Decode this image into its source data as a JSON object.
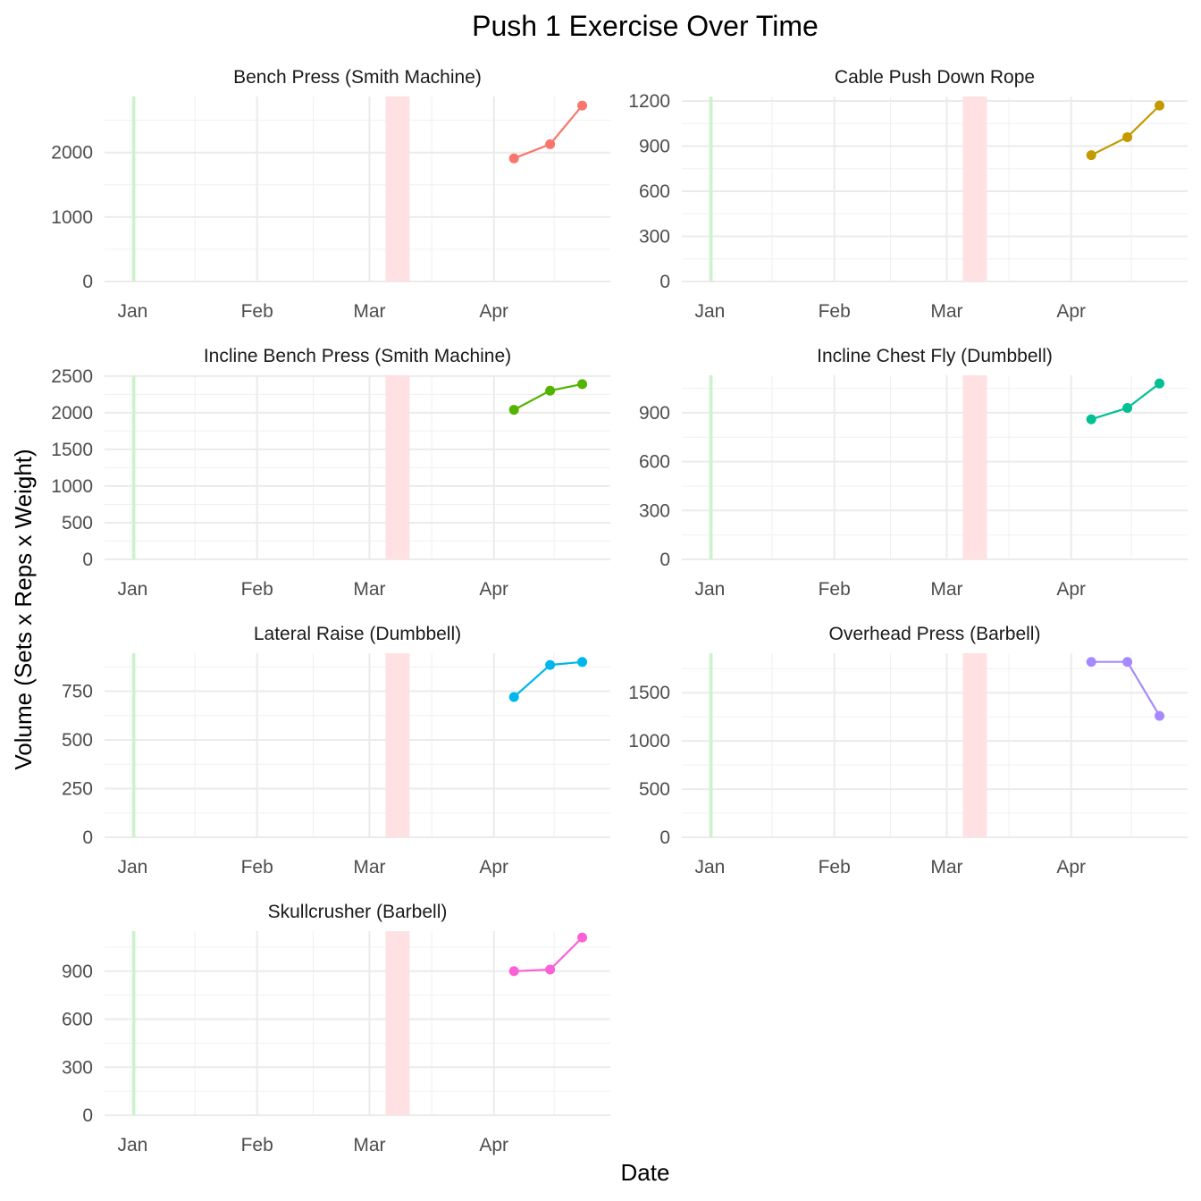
{
  "chart_data": {
    "type": "line",
    "title": "Push 1  Exercise Over Time",
    "xlabel": "Date",
    "ylabel": "Volume (Sets x Reps x Weight)",
    "grid": true,
    "legend": "none",
    "x_ticks": [
      "Jan",
      "Feb",
      "Mar",
      "Apr"
    ],
    "x_tick_dates": [
      "2025-01-01",
      "2025-02-01",
      "2025-03-01",
      "2025-04-01"
    ],
    "xlim": [
      "2024-12-25",
      "2025-04-30"
    ],
    "highlight_bands": [
      {
        "start": "2025-01-01",
        "end": "2025-01-01",
        "color": "#c8f5c8"
      },
      {
        "start": "2025-03-05",
        "end": "2025-03-11",
        "color": "#ffe1e3"
      }
    ],
    "series": [
      {
        "name": "Bench Press (Smith Machine)",
        "color": "#F8766D",
        "x": [
          "2025-04-06",
          "2025-04-15",
          "2025-04-23"
        ],
        "y": [
          1910,
          2130,
          2730
        ],
        "ylim": [
          0,
          2870
        ],
        "y_ticks": [
          0,
          1000,
          2000
        ]
      },
      {
        "name": "Cable Push Down Rope",
        "color": "#C49A00",
        "x": [
          "2025-04-06",
          "2025-04-15",
          "2025-04-23"
        ],
        "y": [
          840,
          960,
          1170
        ],
        "ylim": [
          0,
          1230
        ],
        "y_ticks": [
          0,
          300,
          600,
          900,
          1200
        ]
      },
      {
        "name": "Incline Bench Press (Smith Machine)",
        "color": "#53B400",
        "x": [
          "2025-04-06",
          "2025-04-15",
          "2025-04-23"
        ],
        "y": [
          2040,
          2300,
          2390
        ],
        "ylim": [
          0,
          2510
        ],
        "y_ticks": [
          0,
          500,
          1000,
          1500,
          2000,
          2500
        ]
      },
      {
        "name": "Incline Chest Fly (Dumbbell)",
        "color": "#00C094",
        "x": [
          "2025-04-06",
          "2025-04-15",
          "2025-04-23"
        ],
        "y": [
          860,
          930,
          1080
        ],
        "ylim": [
          0,
          1130
        ],
        "y_ticks": [
          0,
          300,
          600,
          900
        ]
      },
      {
        "name": "Lateral Raise (Dumbbell)",
        "color": "#00B6EB",
        "x": [
          "2025-04-06",
          "2025-04-15",
          "2025-04-23"
        ],
        "y": [
          720,
          885,
          900
        ],
        "ylim": [
          0,
          945
        ],
        "y_ticks": [
          0,
          250,
          500,
          750
        ]
      },
      {
        "name": "Overhead Press (Barbell)",
        "color": "#A58AFF",
        "x": [
          "2025-04-06",
          "2025-04-15",
          "2025-04-23"
        ],
        "y": [
          1820,
          1820,
          1260
        ],
        "ylim": [
          0,
          1910
        ],
        "y_ticks": [
          0,
          500,
          1000,
          1500
        ]
      },
      {
        "name": "Skullcrusher (Barbell)",
        "color": "#FB61D7",
        "x": [
          "2025-04-06",
          "2025-04-15",
          "2025-04-23"
        ],
        "y": [
          900,
          910,
          1110
        ],
        "ylim": [
          0,
          1150
        ],
        "y_ticks": [
          0,
          300,
          600,
          900
        ]
      }
    ]
  }
}
